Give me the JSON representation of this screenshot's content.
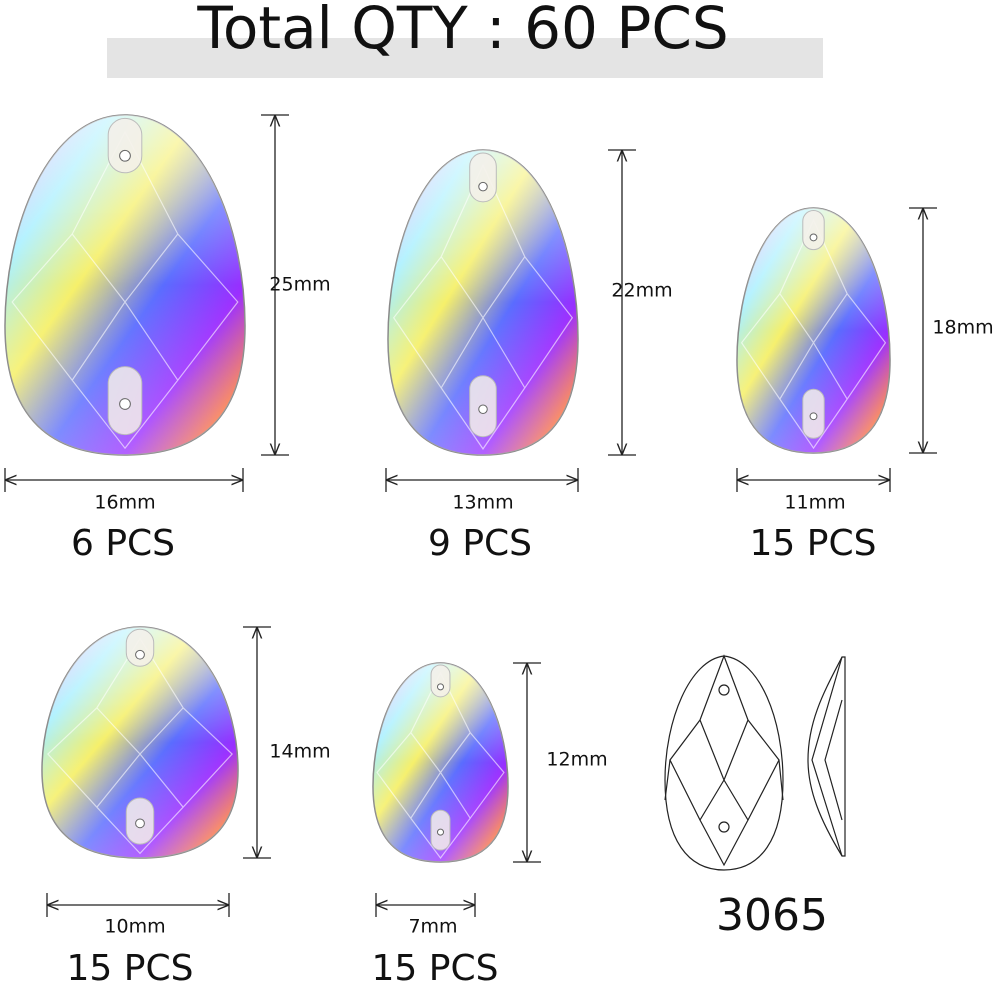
{
  "title": "Total QTY : 60 PCS",
  "items": [
    {
      "height": "25mm",
      "width": "16mm",
      "qty": "6 PCS"
    },
    {
      "height": "22mm",
      "width": "13mm",
      "qty": "9 PCS"
    },
    {
      "height": "18mm",
      "width": "11mm",
      "qty": "15 PCS"
    },
    {
      "height": "14mm",
      "width": "10mm",
      "qty": "15 PCS"
    },
    {
      "height": "12mm",
      "width": "7mm",
      "qty": "15 PCS"
    }
  ],
  "model": "3065"
}
